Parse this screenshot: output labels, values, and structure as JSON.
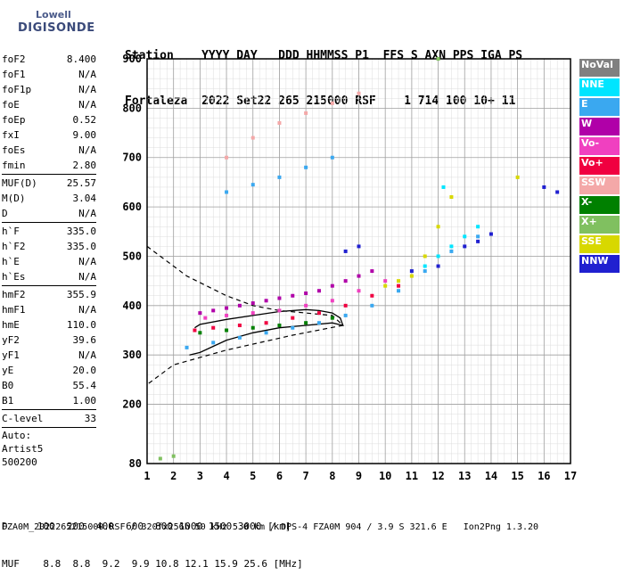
{
  "logo": {
    "line1": "Lowell",
    "line2": "DIGISONDE"
  },
  "header": {
    "labels": "Station    YYYY DAY   DDD HHMMSS P1  FFS S AXN PPS IGA PS",
    "values": "Fortaleza  2022 Set22 265 215000 RSF    1 714 100 10+ 11"
  },
  "params": [
    {
      "label": "foF2",
      "value": "8.400"
    },
    {
      "label": "foF1",
      "value": "N/A"
    },
    {
      "label": "foF1p",
      "value": "N/A"
    },
    {
      "label": "foE",
      "value": "N/A"
    },
    {
      "label": "foEp",
      "value": "0.52"
    },
    {
      "label": "fxI",
      "value": "9.00"
    },
    {
      "label": "foEs",
      "value": "N/A"
    },
    {
      "label": "fmin",
      "value": "2.80"
    },
    {
      "sep": true
    },
    {
      "label": "MUF(D)",
      "value": "25.57"
    },
    {
      "label": "M(D)",
      "value": "3.04"
    },
    {
      "label": "D",
      "value": "N/A"
    },
    {
      "sep": true
    },
    {
      "label": "h`F",
      "value": "335.0"
    },
    {
      "label": "h`F2",
      "value": "335.0"
    },
    {
      "label": "h`E",
      "value": "N/A"
    },
    {
      "label": "h`Es",
      "value": "N/A"
    },
    {
      "sep": true
    },
    {
      "label": "hmF2",
      "value": "355.9"
    },
    {
      "label": "hmF1",
      "value": "N/A"
    },
    {
      "label": "hmE",
      "value": "110.0"
    },
    {
      "label": "yF2",
      "value": "39.6"
    },
    {
      "label": "yF1",
      "value": "N/A"
    },
    {
      "label": "yE",
      "value": "20.0"
    },
    {
      "label": "B0",
      "value": "55.4"
    },
    {
      "label": "B1",
      "value": "1.00"
    },
    {
      "sep": true
    },
    {
      "label": "C-level",
      "value": "33"
    },
    {
      "sep": true
    },
    {
      "text": "Auto:"
    },
    {
      "text": "Artist5"
    },
    {
      "text": "500200"
    }
  ],
  "legend": [
    {
      "label": "NoVal",
      "color": "#808080"
    },
    {
      "label": "NNE",
      "color": "#00e5ff"
    },
    {
      "label": "E",
      "color": "#3aa8f0"
    },
    {
      "label": "W",
      "color": "#b000a8"
    },
    {
      "label": "Vo-",
      "color": "#f040c0"
    },
    {
      "label": "Vo+",
      "color": "#f00040"
    },
    {
      "label": "SSW",
      "color": "#f4a8a8"
    },
    {
      "label": "X-",
      "color": "#008000"
    },
    {
      "label": "X+",
      "color": "#80c060"
    },
    {
      "label": "SSE",
      "color": "#d8d800"
    },
    {
      "label": "NNW",
      "color": "#2020d0"
    }
  ],
  "footer": {
    "d_row": "D     100  200  400  600  800 1000 1500 3000 [km]",
    "muf_row": "MUF    8.8  8.8  9.2  9.9 10.8 12.1 15.9 25.6 [MHz]",
    "file_line": "FZA0M_2022265215000.RSF / 320fx256h 50 kHz 5.0 km / DPS-4 FZA0M 904 / 3.9 S 321.6 E   Ion2Png 1.3.20"
  },
  "chart_data": {
    "type": "scatter",
    "title": "",
    "xlabel": "",
    "ylabel": "",
    "xlim": [
      1,
      17
    ],
    "ylim": [
      80,
      900
    ],
    "xticks": [
      1,
      2,
      3,
      4,
      5,
      6,
      7,
      8,
      9,
      10,
      11,
      12,
      13,
      14,
      15,
      16,
      17
    ],
    "yticks": [
      80,
      200,
      300,
      400,
      500,
      600,
      700,
      800,
      900
    ],
    "grid": true,
    "legend_position": "right",
    "series": [
      {
        "color": "#b000a8",
        "points": [
          [
            3,
            385
          ],
          [
            3.5,
            390
          ],
          [
            4,
            395
          ],
          [
            4.5,
            400
          ],
          [
            5,
            405
          ],
          [
            5.5,
            410
          ],
          [
            6,
            415
          ],
          [
            6.5,
            420
          ],
          [
            7,
            425
          ],
          [
            7.5,
            430
          ],
          [
            8,
            440
          ],
          [
            8.5,
            450
          ],
          [
            9,
            460
          ],
          [
            9.5,
            470
          ]
        ]
      },
      {
        "color": "#f040c0",
        "points": [
          [
            3.2,
            375
          ],
          [
            4,
            380
          ],
          [
            5,
            385
          ],
          [
            6,
            390
          ],
          [
            7,
            400
          ],
          [
            8,
            410
          ],
          [
            9,
            430
          ],
          [
            10,
            450
          ]
        ]
      },
      {
        "color": "#f00040",
        "points": [
          [
            2.8,
            350
          ],
          [
            3.5,
            355
          ],
          [
            4.5,
            360
          ],
          [
            5.5,
            365
          ],
          [
            6.5,
            375
          ],
          [
            7.5,
            385
          ],
          [
            8.5,
            400
          ],
          [
            9.5,
            420
          ],
          [
            10.5,
            440
          ]
        ]
      },
      {
        "color": "#008000",
        "points": [
          [
            3,
            345
          ],
          [
            4,
            350
          ],
          [
            5,
            355
          ],
          [
            6,
            360
          ],
          [
            7,
            365
          ],
          [
            8,
            375
          ]
        ]
      },
      {
        "color": "#3aa8f0",
        "points": [
          [
            2.5,
            315
          ],
          [
            3.5,
            325
          ],
          [
            4.5,
            335
          ],
          [
            5.5,
            345
          ],
          [
            6.5,
            355
          ],
          [
            7.5,
            365
          ],
          [
            8.5,
            380
          ],
          [
            9.5,
            400
          ],
          [
            10.5,
            430
          ],
          [
            11.5,
            470
          ],
          [
            12.5,
            510
          ],
          [
            13.5,
            540
          ],
          [
            4,
            630
          ],
          [
            5,
            645
          ],
          [
            6,
            660
          ],
          [
            7,
            680
          ],
          [
            8,
            700
          ]
        ]
      },
      {
        "color": "#00e5ff",
        "points": [
          [
            11.5,
            480
          ],
          [
            12,
            500
          ],
          [
            12.5,
            520
          ],
          [
            13,
            540
          ],
          [
            13.5,
            560
          ],
          [
            12.2,
            640
          ]
        ]
      },
      {
        "color": "#d8d800",
        "points": [
          [
            10,
            440
          ],
          [
            10.5,
            450
          ],
          [
            11,
            460
          ],
          [
            11.5,
            500
          ],
          [
            12,
            560
          ],
          [
            12.5,
            620
          ],
          [
            15,
            660
          ]
        ]
      },
      {
        "color": "#2020d0",
        "points": [
          [
            8.5,
            510
          ],
          [
            9,
            520
          ],
          [
            11,
            470
          ],
          [
            12,
            480
          ],
          [
            13,
            520
          ],
          [
            13.5,
            530
          ],
          [
            14,
            545
          ],
          [
            16,
            640
          ],
          [
            16.5,
            630
          ]
        ]
      },
      {
        "color": "#f4a8a8",
        "points": [
          [
            4,
            700
          ],
          [
            5,
            740
          ],
          [
            6,
            770
          ],
          [
            7,
            790
          ],
          [
            8,
            810
          ],
          [
            9,
            830
          ]
        ]
      },
      {
        "color": "#80c060",
        "points": [
          [
            1.5,
            90
          ],
          [
            2,
            95
          ],
          [
            12,
            900
          ]
        ]
      }
    ],
    "profile_solid": [
      [
        2.6,
        300
      ],
      [
        3,
        305
      ],
      [
        4,
        330
      ],
      [
        5,
        345
      ],
      [
        6,
        355
      ],
      [
        7,
        360
      ],
      [
        8,
        365
      ],
      [
        8.4,
        360
      ],
      [
        8.3,
        375
      ],
      [
        8,
        385
      ],
      [
        7.5,
        390
      ],
      [
        7,
        392
      ],
      [
        6,
        388
      ],
      [
        5,
        380
      ],
      [
        4,
        372
      ],
      [
        3,
        362
      ],
      [
        2.8,
        355
      ]
    ],
    "profile_dashed": [
      [
        1,
        520
      ],
      [
        2.5,
        460
      ],
      [
        4,
        420
      ],
      [
        5,
        400
      ],
      [
        6,
        390
      ],
      [
        7,
        385
      ],
      [
        8,
        380
      ],
      [
        8.4,
        360
      ],
      [
        6.5,
        340
      ],
      [
        4,
        310
      ],
      [
        2,
        280
      ],
      [
        1,
        240
      ]
    ]
  }
}
